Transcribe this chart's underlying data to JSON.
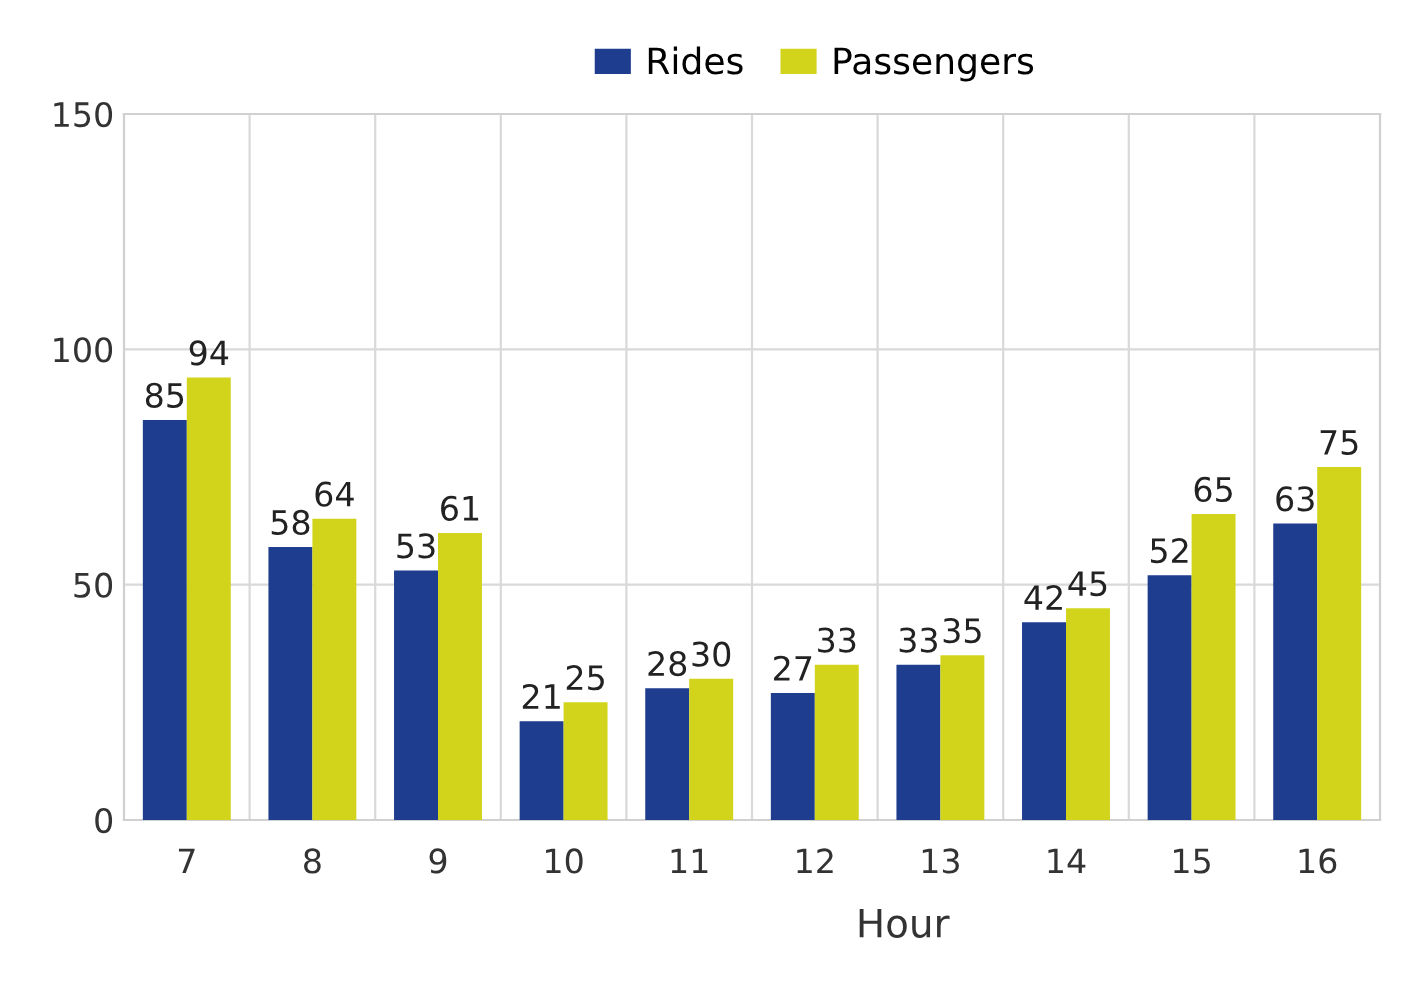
{
  "chart_data": {
    "type": "bar",
    "xlabel": "Hour",
    "categories": [
      "7",
      "8",
      "9",
      "10",
      "11",
      "12",
      "13",
      "14",
      "15",
      "16"
    ],
    "series": [
      {
        "name": "Rides",
        "color": "#1f3d8f",
        "values": [
          85,
          58,
          53,
          21,
          28,
          27,
          33,
          42,
          52,
          63
        ]
      },
      {
        "name": "Passengers",
        "color": "#d2d41c",
        "values": [
          94,
          64,
          61,
          25,
          30,
          33,
          35,
          45,
          65,
          75
        ]
      }
    ],
    "ylim": [
      0,
      150
    ],
    "yticks": [
      0,
      50,
      100,
      150
    ],
    "grid": true,
    "legend": "top",
    "data_labels": true
  }
}
